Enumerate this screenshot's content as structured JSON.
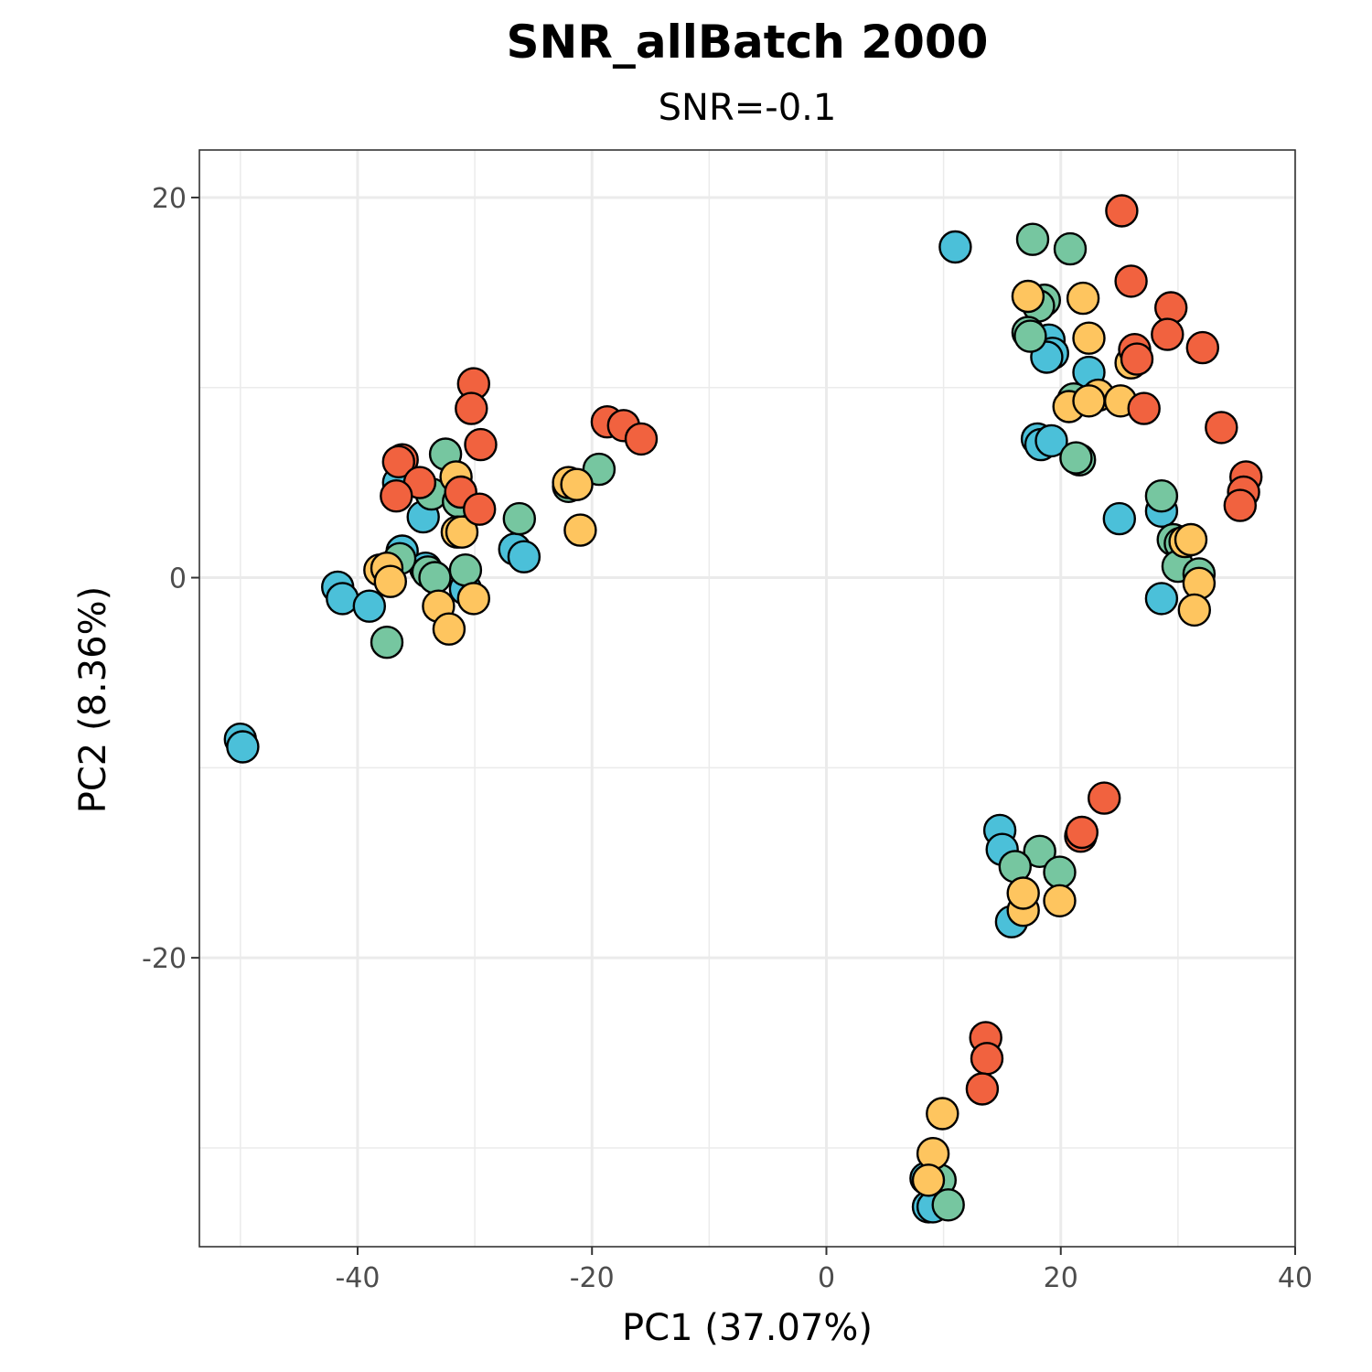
{
  "chart_data": {
    "type": "scatter",
    "title": "SNR_allBatch 2000",
    "subtitle": "SNR=-0.1",
    "xlabel": "PC1 (37.07%)",
    "ylabel": "PC2 (8.36%)",
    "xlim": [
      -53.5,
      40
    ],
    "ylim": [
      -35.2,
      22.5
    ],
    "x_ticks": [
      -40,
      -20,
      0,
      20,
      40
    ],
    "x_tick_labels": [
      "-40",
      "-20",
      "0",
      "20",
      "40"
    ],
    "y_ticks": [
      -20,
      0,
      20
    ],
    "y_tick_labels": [
      "-20",
      "0",
      "20"
    ],
    "x_minor_ticks": [
      -50,
      -30,
      -10,
      10,
      30
    ],
    "y_minor_ticks": [
      -30,
      -10,
      10
    ],
    "grid": true,
    "legend": "none",
    "colors": {
      "blue": "#4bc0d9",
      "green": "#76c6a0",
      "yellow": "#fec55f",
      "red": "#f1623f"
    },
    "series": [
      {
        "color": "#4bc0d9",
        "points": [
          [
            -50,
            -8.5
          ],
          [
            -49.8,
            -8.9
          ],
          [
            -41.7,
            -0.5
          ],
          [
            -41.3,
            -1.1
          ],
          [
            -39,
            -1.5
          ],
          [
            -36.5,
            5
          ],
          [
            -36.2,
            1.4
          ],
          [
            -34.2,
            0.5
          ],
          [
            -34.4,
            3.2
          ],
          [
            -31.8,
            4.5
          ],
          [
            -30.8,
            -0.6
          ],
          [
            -26.6,
            1.5
          ],
          [
            -25.8,
            1.1
          ],
          [
            11,
            17.4
          ],
          [
            19,
            12.5
          ],
          [
            19.3,
            11.8
          ],
          [
            18.8,
            11.6
          ],
          [
            22.4,
            10.8
          ],
          [
            18,
            7.3
          ],
          [
            18.3,
            7
          ],
          [
            19.2,
            7.2
          ],
          [
            25,
            3.1
          ],
          [
            28.6,
            3.5
          ],
          [
            28.6,
            -1.1
          ],
          [
            14.8,
            -13.3
          ],
          [
            15,
            -14.3
          ],
          [
            15.8,
            -18.1
          ],
          [
            8.5,
            -31.6
          ],
          [
            8.7,
            -33.1
          ],
          [
            9.1,
            -33.1
          ]
        ]
      },
      {
        "color": "#76c6a0",
        "points": [
          [
            -37.5,
            -3.4
          ],
          [
            -36.4,
            1
          ],
          [
            -34,
            0.3
          ],
          [
            -33.7,
            4.4
          ],
          [
            -33.4,
            0
          ],
          [
            -32.5,
            6.5
          ],
          [
            -31.4,
            4
          ],
          [
            -30.8,
            0.4
          ],
          [
            -26.2,
            3.1
          ],
          [
            -22,
            4.8
          ],
          [
            -19.4,
            5.7
          ],
          [
            17.6,
            17.8
          ],
          [
            20.8,
            17.3
          ],
          [
            18.6,
            14.6
          ],
          [
            18.1,
            14.3
          ],
          [
            17.2,
            12.9
          ],
          [
            17.4,
            12.7
          ],
          [
            21.1,
            9.4
          ],
          [
            21.6,
            6.2
          ],
          [
            21.3,
            6.3
          ],
          [
            28.6,
            4.3
          ],
          [
            29.6,
            2
          ],
          [
            30.2,
            1.8
          ],
          [
            30,
            0.6
          ],
          [
            31.8,
            0.2
          ],
          [
            18.2,
            -14.4
          ],
          [
            16.1,
            -15.2
          ],
          [
            19.9,
            -15.5
          ],
          [
            9.7,
            -31.7
          ],
          [
            10.4,
            -33
          ]
        ]
      },
      {
        "color": "#fec55f",
        "points": [
          [
            -38.1,
            0.4
          ],
          [
            -37.5,
            0.5
          ],
          [
            -37.2,
            -0.2
          ],
          [
            -33.1,
            -1.5
          ],
          [
            -32.2,
            -2.7
          ],
          [
            -31.6,
            5.3
          ],
          [
            -31.5,
            2.4
          ],
          [
            -31.1,
            2.4
          ],
          [
            -30.1,
            -1.1
          ],
          [
            -22,
            5
          ],
          [
            -21.3,
            4.9
          ],
          [
            -21,
            2.5
          ],
          [
            17.2,
            14.8
          ],
          [
            21.9,
            14.7
          ],
          [
            22.4,
            12.6
          ],
          [
            26,
            11.3
          ],
          [
            20.7,
            9
          ],
          [
            23.2,
            9.6
          ],
          [
            22.4,
            9.3
          ],
          [
            25.1,
            9.3
          ],
          [
            30.6,
            1.9
          ],
          [
            31.1,
            2
          ],
          [
            31.8,
            -0.3
          ],
          [
            31.4,
            -1.7
          ],
          [
            16.8,
            -17.5
          ],
          [
            16.8,
            -16.6
          ],
          [
            19.9,
            -17
          ],
          [
            9.9,
            -28.2
          ],
          [
            9.1,
            -30.3
          ],
          [
            8.7,
            -31.7
          ]
        ]
      },
      {
        "color": "#f1623f",
        "points": [
          [
            -36.2,
            6.2
          ],
          [
            -36.5,
            6.1
          ],
          [
            -34.7,
            5
          ],
          [
            -36.7,
            4.3
          ],
          [
            -31.2,
            4.5
          ],
          [
            -30.1,
            10.2
          ],
          [
            -30.3,
            8.9
          ],
          [
            -29.5,
            7
          ],
          [
            -29.6,
            3.6
          ],
          [
            -18.7,
            8.2
          ],
          [
            -17.3,
            8
          ],
          [
            -15.8,
            7.3
          ],
          [
            25.2,
            19.3
          ],
          [
            26,
            15.6
          ],
          [
            29.4,
            14.2
          ],
          [
            29.1,
            12.8
          ],
          [
            32.1,
            12.1
          ],
          [
            26.3,
            12
          ],
          [
            26.5,
            11.5
          ],
          [
            27.1,
            8.9
          ],
          [
            33.7,
            7.9
          ],
          [
            35.8,
            5.3
          ],
          [
            35.6,
            4.5
          ],
          [
            35.3,
            3.8
          ],
          [
            23.7,
            -11.6
          ],
          [
            21.7,
            -13.6
          ],
          [
            21.8,
            -13.4
          ],
          [
            13.6,
            -24.2
          ],
          [
            13.7,
            -25.3
          ],
          [
            13.3,
            -26.9
          ]
        ]
      }
    ]
  }
}
